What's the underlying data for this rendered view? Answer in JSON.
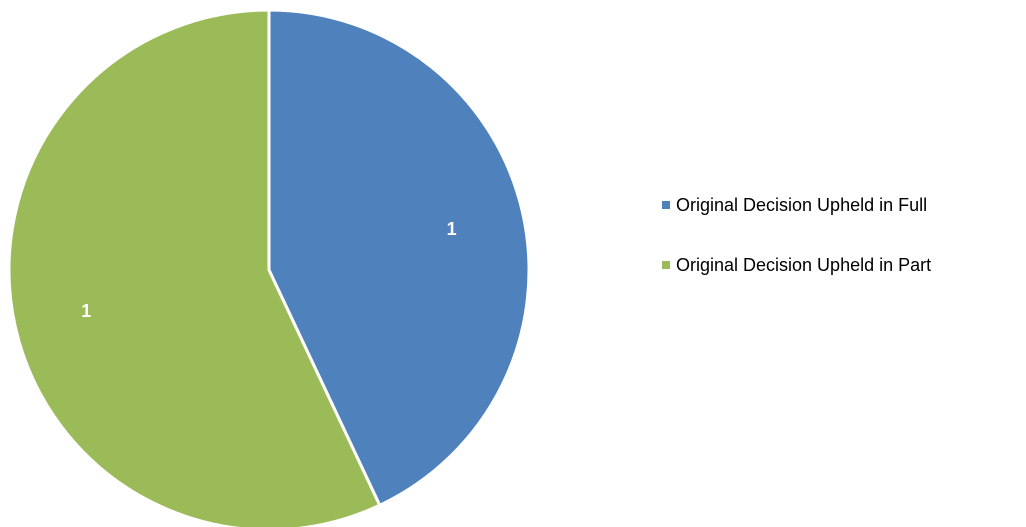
{
  "chart_data": {
    "type": "pie",
    "categories": [
      "Original Decision Upheld in Full",
      "Original Decision Upheld in Part"
    ],
    "values": [
      1,
      1
    ],
    "shares_percent": [
      43,
      57
    ],
    "data_labels": [
      "1",
      "1"
    ],
    "colors": [
      "#4F81BD",
      "#9BBB59"
    ],
    "legend_position": "right",
    "title": ""
  }
}
